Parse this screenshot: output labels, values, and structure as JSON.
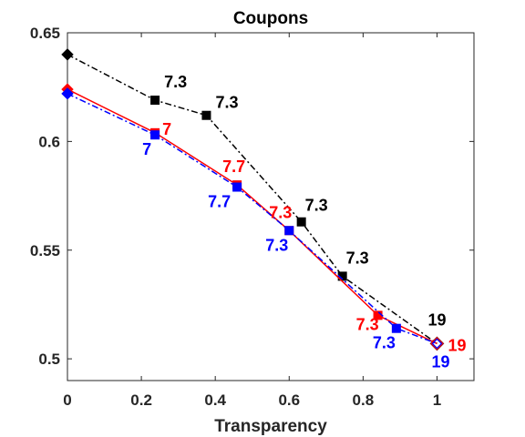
{
  "chart_data": {
    "type": "line",
    "title": "Coupons",
    "xlabel": "Transparency",
    "ylabel": "",
    "xlim": [
      0,
      1.1
    ],
    "ylim": [
      0.49,
      0.65
    ],
    "xticks": [
      "0",
      "0.2",
      "0.4",
      "0.6",
      "0.8",
      "1"
    ],
    "yticks": [
      "0.5",
      "0.55",
      "0.6",
      "0.65"
    ],
    "grid": false,
    "series": [
      {
        "color": "#000000",
        "line_style": "dash-dot",
        "start": {
          "x": 0,
          "y": 0.64
        },
        "points": [
          {
            "x": 0.237,
            "y": 0.619,
            "label": "7.3"
          },
          {
            "x": 0.376,
            "y": 0.612,
            "label": "7.3"
          },
          {
            "x": 0.633,
            "y": 0.563,
            "label": "7.3"
          },
          {
            "x": 0.744,
            "y": 0.538,
            "label": "7.3"
          }
        ],
        "end": {
          "x": 1.0,
          "y": 0.507,
          "label": "19"
        }
      },
      {
        "color": "#ff0000",
        "line_style": "solid",
        "start": {
          "x": 0,
          "y": 0.624
        },
        "points": [
          {
            "x": 0.237,
            "y": 0.604,
            "label": "7"
          },
          {
            "x": 0.459,
            "y": 0.58,
            "label": "7.7"
          },
          {
            "x": 0.6,
            "y": 0.559,
            "label": "7.3"
          },
          {
            "x": 0.84,
            "y": 0.52,
            "label": "7.3"
          }
        ],
        "end": {
          "x": 1.0,
          "y": 0.507,
          "label": "19"
        }
      },
      {
        "color": "#0000ff",
        "line_style": "dash-dot",
        "start": {
          "x": 0,
          "y": 0.622
        },
        "points": [
          {
            "x": 0.237,
            "y": 0.603,
            "label": "7"
          },
          {
            "x": 0.459,
            "y": 0.579,
            "label": "7.7"
          },
          {
            "x": 0.6,
            "y": 0.559,
            "label": "7.3"
          },
          {
            "x": 0.89,
            "y": 0.514,
            "label": "7.3"
          }
        ],
        "end": {
          "x": 1.0,
          "y": 0.507,
          "label": "19"
        }
      }
    ]
  }
}
